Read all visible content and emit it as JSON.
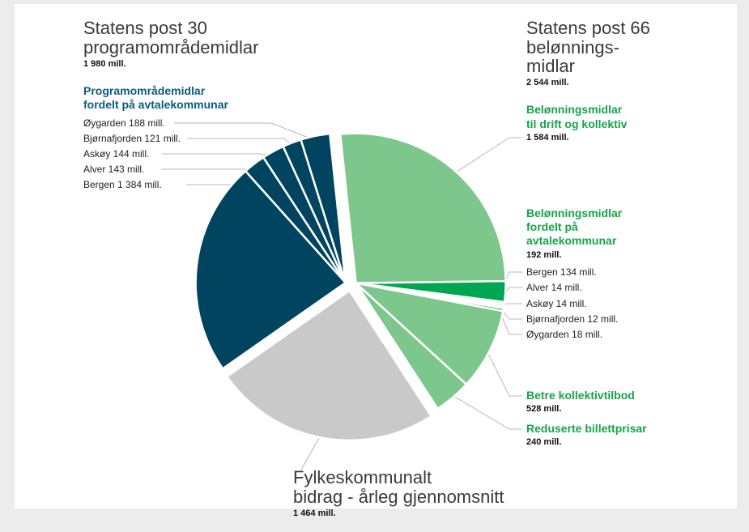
{
  "chart_data": {
    "type": "pie",
    "groups": [
      {
        "title": [
          "Statens post 66",
          "belønnings-",
          "midlar"
        ],
        "value": 2544,
        "value_label": "2 544 mill.",
        "color": "#7dc68c",
        "items": [
          {
            "title": [
              "Belønningsmidlar",
              "til drift og kollektiv"
            ],
            "value": 1584,
            "value_label": "1 584 mill."
          },
          {
            "title": [
              "Belønningsmidlar",
              "fordelt på",
              "avtalekommunar"
            ],
            "value": 192,
            "value_label": "192 mill.",
            "color": "#00a651",
            "slices": [
              {
                "label": "Bergen 134 mill.",
                "value": 134
              },
              {
                "label": "Alver 14 mill.",
                "value": 14
              },
              {
                "label": "Askøy 14 mill.",
                "value": 14
              },
              {
                "label": "Bjørnafjorden 12 mill.",
                "value": 12
              },
              {
                "label": "Øygarden 18 mill.",
                "value": 18
              }
            ]
          },
          {
            "title": [
              "Betre kollektivtilbod"
            ],
            "value": 528,
            "value_label": "528 mill."
          },
          {
            "title": [
              "Reduserte billettprisar"
            ],
            "value": 240,
            "value_label": "240 mill."
          }
        ]
      },
      {
        "title": [
          "Fylkeskommunalt",
          "bidrag - årleg gjennomsnitt"
        ],
        "value": 1464,
        "value_label": "1 464 mill.",
        "color": "#c9c9c9"
      },
      {
        "title": [
          "Statens post 30",
          "programområdemidlar"
        ],
        "value": 1980,
        "value_label": "1 980 mill.",
        "color": "#00445f",
        "items": [
          {
            "title": [
              "Programområdemidlar",
              "fordelt på avtalekommunar"
            ],
            "slices": [
              {
                "label": "Bergen 1 384 mill.",
                "value": 1384
              },
              {
                "label": "Alver 143 mill.",
                "value": 143
              },
              {
                "label": "Askøy 144 mill.",
                "value": 144
              },
              {
                "label": "Bjørnafjorden 121 mill.",
                "value": 121
              },
              {
                "label": "Øygarden 188 mill.",
                "value": 188
              }
            ]
          }
        ]
      }
    ]
  }
}
